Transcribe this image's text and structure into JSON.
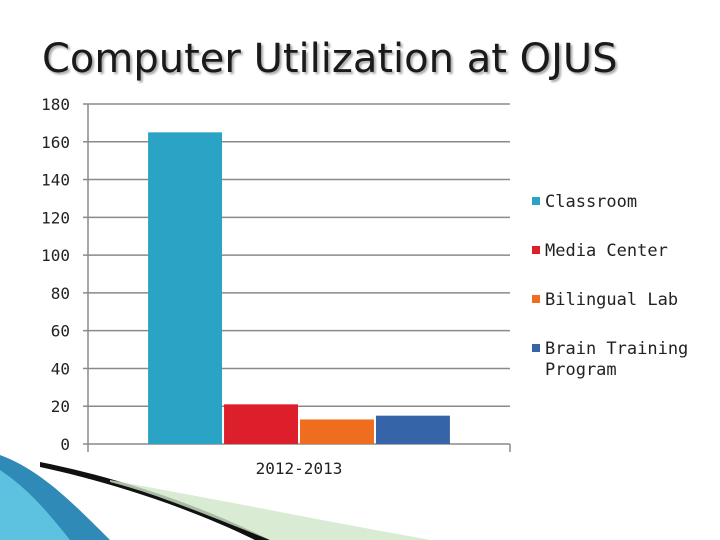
{
  "slide": {
    "title": "Computer Utilization at OJUS"
  },
  "chart_data": {
    "type": "bar",
    "categories": [
      "2012-2013"
    ],
    "series": [
      {
        "name": "Classroom",
        "values": [
          165
        ],
        "color": "#2aa3c4"
      },
      {
        "name": "Media Center",
        "values": [
          21
        ],
        "color": "#dc1f2a"
      },
      {
        "name": "Bilingual Lab",
        "values": [
          13
        ],
        "color": "#ee6d1e"
      },
      {
        "name": "Brain Training Program",
        "values": [
          15
        ],
        "color": "#3564a8"
      }
    ],
    "ylim": [
      0,
      180
    ],
    "yticks": [
      0,
      20,
      40,
      60,
      80,
      100,
      120,
      140,
      160,
      180
    ],
    "grid": true,
    "legend_position": "right",
    "xlabel": "",
    "ylabel": ""
  }
}
